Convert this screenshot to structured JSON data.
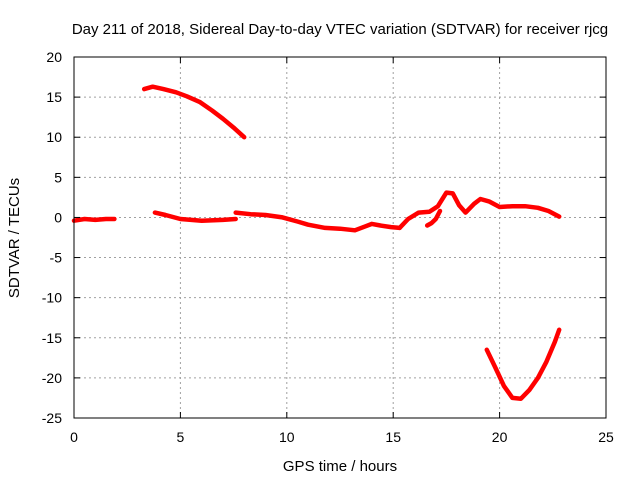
{
  "chart_data": {
    "type": "line",
    "title": "Day 211 of 2018, Sidereal Day-to-day VTEC variation (SDTVAR) for receiver rjcg",
    "xlabel": "GPS time / hours",
    "ylabel": "SDTVAR / TECUs",
    "xlim": [
      0,
      25
    ],
    "ylim": [
      -25,
      20
    ],
    "xticks": [
      0,
      5,
      10,
      15,
      20,
      25
    ],
    "yticks": [
      20,
      15,
      10,
      5,
      0,
      -5,
      -10,
      -15,
      -20,
      -25
    ],
    "grid": true,
    "series_color": "#ff0000",
    "series": [
      {
        "name": "segment-1",
        "x": [
          0,
          0.5,
          1.0,
          1.5,
          1.9
        ],
        "y": [
          -0.4,
          -0.2,
          -0.3,
          -0.2,
          -0.2
        ]
      },
      {
        "name": "segment-2",
        "x": [
          3.3,
          3.7,
          4.2,
          4.8,
          5.3,
          5.9,
          6.5,
          7.0,
          7.5,
          8.0
        ],
        "y": [
          16.0,
          16.3,
          16.0,
          15.6,
          15.1,
          14.4,
          13.3,
          12.3,
          11.2,
          10.0
        ]
      },
      {
        "name": "segment-3",
        "x": [
          3.8,
          4.3,
          5.0,
          6.0,
          7.0,
          7.6
        ],
        "y": [
          0.6,
          0.3,
          -0.2,
          -0.4,
          -0.3,
          -0.2
        ]
      },
      {
        "name": "segment-4",
        "x": [
          7.6,
          8.3,
          9.0,
          9.8,
          10.5,
          11.0,
          11.8,
          12.5,
          13.2,
          13.7,
          14.0,
          14.4,
          14.9,
          15.3
        ],
        "y": [
          0.6,
          0.4,
          0.3,
          0.0,
          -0.5,
          -0.9,
          -1.3,
          -1.4,
          -1.6,
          -1.1,
          -0.8,
          -1.0,
          -1.2,
          -1.3
        ]
      },
      {
        "name": "segment-5",
        "x": [
          15.3,
          15.7,
          16.2,
          16.7,
          17.1,
          17.5,
          17.8,
          18.1,
          18.4,
          18.8,
          19.1,
          19.5,
          20.0,
          20.6,
          21.2,
          21.8,
          22.3,
          22.8
        ],
        "y": [
          -1.3,
          -0.2,
          0.6,
          0.7,
          1.4,
          3.1,
          3.0,
          1.5,
          0.6,
          1.7,
          2.3,
          2.0,
          1.3,
          1.4,
          1.4,
          1.2,
          0.8,
          0.1
        ]
      },
      {
        "name": "segment-6",
        "x": [
          16.6,
          16.8,
          17.0,
          17.2
        ],
        "y": [
          -1.0,
          -0.7,
          -0.2,
          0.8
        ]
      },
      {
        "name": "segment-7",
        "x": [
          19.4,
          19.8,
          20.2,
          20.6,
          21.0,
          21.4,
          21.8,
          22.2,
          22.6,
          22.8
        ],
        "y": [
          -16.5,
          -18.7,
          -21.0,
          -22.5,
          -22.6,
          -21.5,
          -20.0,
          -18.0,
          -15.5,
          -14.0
        ]
      }
    ]
  }
}
